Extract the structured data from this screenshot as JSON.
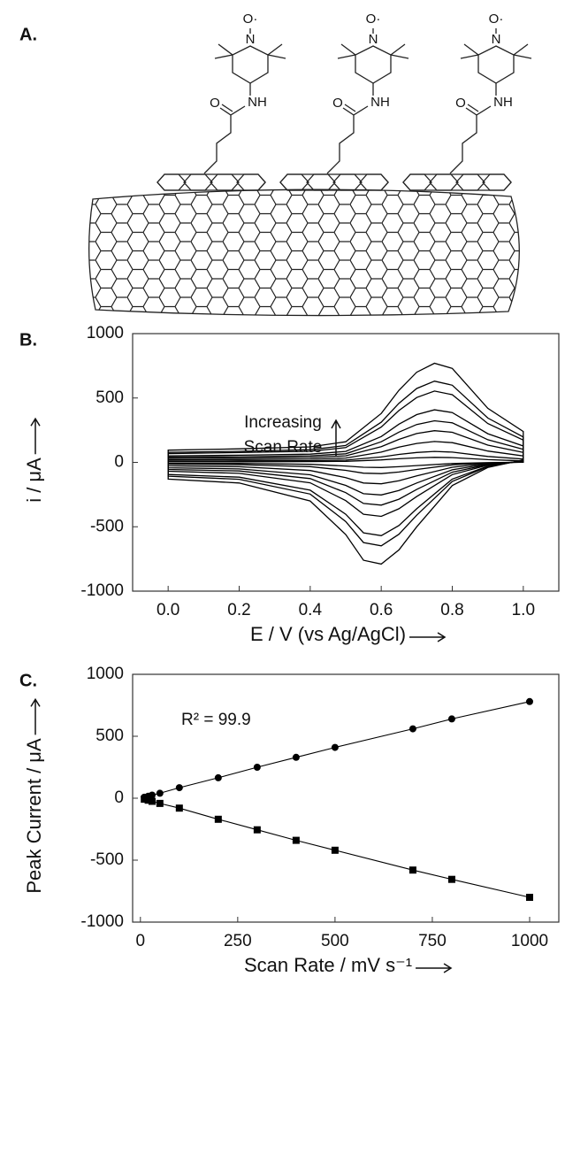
{
  "diagram": {
    "panel": "A.",
    "units": [
      {
        "radical": "O·",
        "nitrogen": "N",
        "carbonyl": "O",
        "amide": "NH"
      },
      {
        "radical": "O·",
        "nitrogen": "N",
        "carbonyl": "O",
        "amide": "NH"
      },
      {
        "radical": "O·",
        "nitrogen": "N",
        "carbonyl": "O",
        "amide": "NH"
      }
    ]
  },
  "chart_data": [
    {
      "type": "line",
      "panel": "B.",
      "ylabel": "i / μA",
      "xlabel": "E / V (vs Ag/AgCl)",
      "annotation": [
        "Increasing",
        "Scan Rate"
      ],
      "color": "#000000",
      "xlim": [
        -0.1,
        1.1
      ],
      "ylim": [
        -1000,
        1000
      ],
      "xticks": [
        {
          "value": 0,
          "label": "0.0"
        },
        0.2,
        0.4,
        0.6,
        0.8,
        {
          "value": 1,
          "label": "1.0"
        }
      ],
      "yticks": [
        -1000,
        -500,
        0,
        500,
        1000
      ],
      "x": [
        0,
        0.2,
        0.4,
        0.5,
        0.6,
        0.65,
        0.7,
        0.75,
        0.8,
        0.9,
        1.0,
        1.0,
        0.9,
        0.8,
        0.7,
        0.65,
        0.6,
        0.55,
        0.5,
        0.4,
        0.2,
        0.0
      ],
      "series": [
        {
          "values": [
            95,
            105,
            120,
            160,
            380,
            560,
            700,
            770,
            730,
            420,
            240,
            20,
            -40,
            -180,
            -500,
            -680,
            -790,
            -760,
            -560,
            -300,
            -160,
            -130
          ]
        },
        {
          "values": [
            78,
            86,
            98,
            131,
            312,
            459,
            574,
            631,
            599,
            344,
            197,
            16,
            -33,
            -148,
            -410,
            -558,
            -648,
            -623,
            -459,
            -246,
            -131,
            -107
          ]
        },
        {
          "values": [
            68,
            76,
            86,
            115,
            274,
            403,
            504,
            554,
            526,
            302,
            173,
            14,
            -29,
            -130,
            -360,
            -490,
            -569,
            -547,
            -403,
            -216,
            -115,
            -94
          ]
        },
        {
          "values": [
            50,
            56,
            64,
            85,
            201,
            297,
            371,
            408,
            387,
            223,
            127,
            11,
            -21,
            -95,
            -265,
            -360,
            -419,
            -403,
            -297,
            -159,
            -85,
            -69
          ]
        },
        {
          "values": [
            40,
            44,
            50,
            67,
            160,
            235,
            294,
            323,
            307,
            176,
            101,
            8,
            -17,
            -76,
            -210,
            -286,
            -332,
            -319,
            -235,
            -126,
            -67,
            -55
          ]
        },
        {
          "values": [
            30,
            34,
            38,
            51,
            122,
            179,
            224,
            246,
            234,
            134,
            77,
            6,
            -13,
            -58,
            -160,
            -218,
            -253,
            -243,
            -179,
            -96,
            -51,
            -42
          ]
        },
        {
          "values": [
            20,
            22,
            25,
            34,
            80,
            118,
            147,
            162,
            153,
            88,
            50,
            4,
            -8,
            -38,
            -105,
            -143,
            -166,
            -160,
            -118,
            -63,
            -34,
            -27
          ]
        },
        {
          "values": [
            10,
            12,
            13,
            18,
            42,
            62,
            77,
            85,
            80,
            46,
            26,
            2,
            -4,
            -20,
            -55,
            -75,
            -87,
            -84,
            -62,
            -33,
            -18,
            -14
          ]
        },
        {
          "values": [
            5,
            5,
            6,
            8,
            19,
            28,
            35,
            39,
            37,
            21,
            12,
            1,
            -2,
            -9,
            -25,
            -34,
            -40,
            -38,
            -28,
            -15,
            -8,
            -7
          ]
        }
      ]
    },
    {
      "type": "scatter",
      "panel": "C.",
      "ylabel": "Peak Current / μA",
      "xlabel": "Scan Rate / mV s⁻¹",
      "annotation": [
        "R² = 99.9"
      ],
      "color": "#000000",
      "line": true,
      "xlim": [
        -20,
        1075
      ],
      "ylim": [
        -1000,
        1000
      ],
      "xticks": [
        0,
        250,
        500,
        750,
        1000
      ],
      "yticks": [
        -1000,
        -500,
        0,
        500,
        1000
      ],
      "x": [
        10,
        20,
        30,
        50,
        100,
        200,
        300,
        400,
        500,
        700,
        800,
        1000
      ],
      "series": [
        {
          "marker": "circle",
          "values": [
            8,
            16,
            25,
            40,
            85,
            165,
            250,
            330,
            410,
            560,
            640,
            780
          ]
        },
        {
          "marker": "square",
          "values": [
            -8,
            -16,
            -25,
            -42,
            -80,
            -170,
            -255,
            -340,
            -420,
            -580,
            -655,
            -800
          ]
        }
      ]
    }
  ]
}
